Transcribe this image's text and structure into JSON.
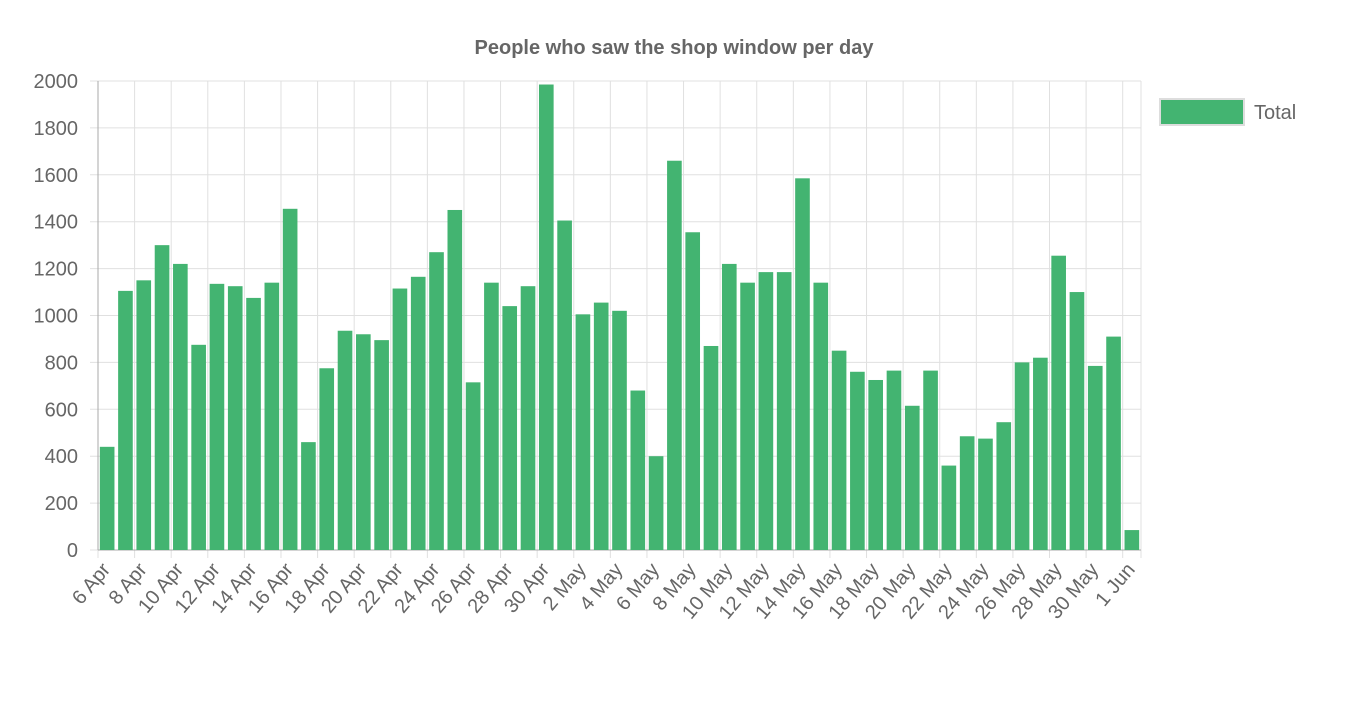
{
  "chart_data": {
    "type": "bar",
    "title": "People who saw the shop window per day",
    "categories": [
      "6 Apr",
      null,
      "8 Apr",
      null,
      "10 Apr",
      null,
      "12 Apr",
      null,
      "14 Apr",
      null,
      "16 Apr",
      null,
      "18 Apr",
      null,
      "20 Apr",
      null,
      "22 Apr",
      null,
      "24 Apr",
      null,
      "26 Apr",
      null,
      "28 Apr",
      null,
      "30 Apr",
      null,
      "2 May",
      null,
      "4 May",
      null,
      "6 May",
      null,
      "8 May",
      null,
      "10 May",
      null,
      "12 May",
      null,
      "14 May",
      null,
      "16 May",
      null,
      "18 May",
      null,
      "20 May",
      null,
      "22 May",
      null,
      "24 May",
      null,
      "26 May",
      null,
      "28 May",
      null,
      "30 May",
      null,
      "1 Jun"
    ],
    "series": [
      {
        "name": "Total",
        "color": "#43b471",
        "values": [
          440,
          1105,
          1150,
          1300,
          1220,
          875,
          1135,
          1125,
          1075,
          1140,
          1455,
          460,
          775,
          935,
          920,
          895,
          1115,
          1165,
          1270,
          1450,
          715,
          1140,
          1040,
          1125,
          1985,
          1405,
          1005,
          1055,
          1020,
          680,
          400,
          1660,
          1355,
          870,
          1220,
          1140,
          1185,
          1185,
          1585,
          1140,
          850,
          760,
          725,
          765,
          615,
          765,
          360,
          485,
          475,
          545,
          800,
          820,
          1255,
          1100,
          785,
          910,
          85
        ]
      }
    ],
    "ylim": [
      0,
      2000
    ],
    "yticks": [
      0,
      200,
      400,
      600,
      800,
      1000,
      1200,
      1400,
      1600,
      1800,
      2000
    ],
    "grid": true,
    "legend": "right"
  }
}
